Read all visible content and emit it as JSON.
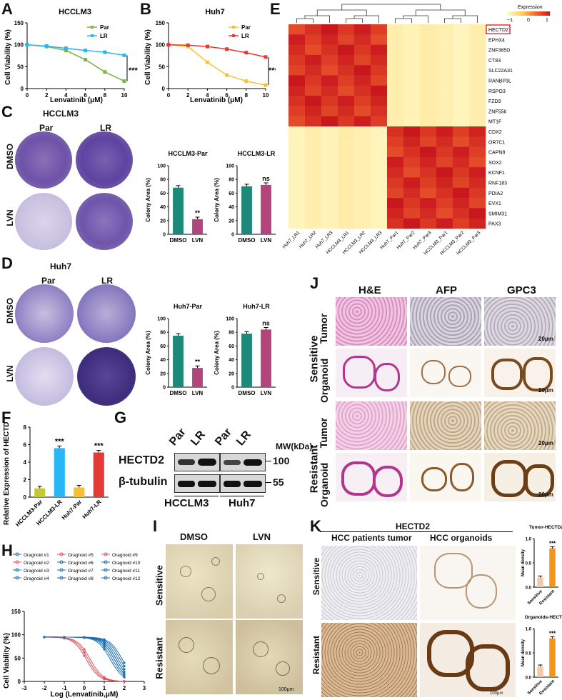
{
  "panels": {
    "A": "A",
    "B": "B",
    "C": "C",
    "D": "D",
    "E": "E",
    "F": "F",
    "G": "G",
    "H": "H",
    "I": "I",
    "J": "J",
    "K": "K"
  },
  "panelA": {
    "title": "HCCLM3",
    "xlabel": "Lenvatinib (μM)",
    "ylabel": "Cell Viability (%)",
    "sig": "***",
    "legend": [
      "Par",
      "LR"
    ],
    "xticks": [
      "0",
      "2",
      "4",
      "6",
      "8",
      "10"
    ],
    "yticks": [
      "0",
      "50",
      "100",
      "150"
    ],
    "x": [
      0,
      2,
      4,
      6,
      8,
      10
    ],
    "series": [
      {
        "name": "Par",
        "values": [
          100,
          96,
          87,
          66,
          38,
          17
        ],
        "color": "#7cb342"
      },
      {
        "name": "LR",
        "values": [
          100,
          97,
          92,
          87,
          83,
          76
        ],
        "color": "#29b6f6"
      }
    ]
  },
  "panelB": {
    "title": "Huh7",
    "xlabel": "Lenvatinib (μM)",
    "ylabel": "Cell Viability (%)",
    "sig": "***",
    "legend": [
      "Par",
      "LR"
    ],
    "xticks": [
      "0",
      "2",
      "4",
      "6",
      "8",
      "10"
    ],
    "yticks": [
      "0",
      "50",
      "100",
      "150"
    ],
    "x": [
      0,
      2,
      4,
      6,
      8,
      10
    ],
    "series": [
      {
        "name": "Par",
        "values": [
          100,
          96,
          60,
          31,
          17,
          8
        ],
        "color": "#fbc02d"
      },
      {
        "name": "LR",
        "values": [
          100,
          99,
          96,
          90,
          82,
          72
        ],
        "color": "#e53935"
      }
    ]
  },
  "panelC": {
    "title": "HCCLM3",
    "cols": [
      "Par",
      "LR"
    ],
    "rows": [
      "DMSO",
      "LVN"
    ],
    "bar1": {
      "title": "HCCLM3-Par",
      "ylabel": "Colony Area (%)",
      "categories": [
        "DMSO",
        "LVN"
      ],
      "values": [
        68,
        22
      ],
      "sig": "**",
      "yticks": [
        "0",
        "20",
        "40",
        "60",
        "80",
        "100"
      ]
    },
    "bar2": {
      "title": "HCCLM3-LR",
      "ylabel": "Colony Area (%)",
      "categories": [
        "DMSO",
        "LVN"
      ],
      "values": [
        70,
        72
      ],
      "sig": "ns",
      "yticks": [
        "0",
        "20",
        "40",
        "60",
        "80",
        "100"
      ]
    }
  },
  "panelD": {
    "title": "Huh7",
    "cols": [
      "Par",
      "LR"
    ],
    "rows": [
      "DMSO",
      "LVN"
    ],
    "bar1": {
      "title": "Huh7-Par",
      "ylabel": "Colony Area (%)",
      "categories": [
        "DMSO",
        "LVN"
      ],
      "values": [
        75,
        28
      ],
      "sig": "**",
      "yticks": [
        "0",
        "20",
        "40",
        "60",
        "80",
        "100"
      ]
    },
    "bar2": {
      "title": "Huh7-LR",
      "ylabel": "Colony Area (%)",
      "categories": [
        "DMSO",
        "LVN"
      ],
      "values": [
        78,
        84
      ],
      "sig": "ns",
      "yticks": [
        "0",
        "20",
        "40",
        "60",
        "80",
        "100"
      ]
    }
  },
  "panelE": {
    "legend_title": "Expression",
    "legend_ticks": [
      "−1",
      "0",
      "1"
    ],
    "genes": [
      "HECTD2",
      "EPHX4",
      "ZNF385D",
      "CT83",
      "SLC22A31",
      "RANBP3L",
      "RSPO3",
      "FZD9",
      "ZNF556",
      "MT1F",
      "CDX2",
      "OR7C1",
      "CAPN8",
      "SOX2",
      "KCNF1",
      "RNF183",
      "PDIA2",
      "EVX1",
      "SMIM31",
      "PAX3"
    ],
    "samples": [
      "Huh7_LR1",
      "Huh7_LR2",
      "Huh7_LR3",
      "HCCLM3_LR1",
      "HCCLM3_LR2",
      "HCCLM3_LR3",
      "Huh7_Par1",
      "Huh7_Par2",
      "Huh7_Par3",
      "HCCLM3_Par1",
      "HCCLM3_Par2",
      "HCCLM3_Par3"
    ]
  },
  "panelF": {
    "ylabel": "Relative Expression of HECTD2",
    "categories": [
      "HCCLM3-Par",
      "HCCLM3-LR",
      "Huh7-Par",
      "Huh7-LR"
    ],
    "values": [
      1.0,
      5.6,
      1.1,
      5.1
    ],
    "colors": [
      "#c0ca33",
      "#29b6f6",
      "#fbc02d",
      "#e53935"
    ],
    "sig": [
      "",
      "***",
      "",
      "***"
    ],
    "yticks": [
      "0",
      "2",
      "4",
      "6",
      "8"
    ]
  },
  "panelG": {
    "lanes": [
      "Par",
      "LR",
      "Par",
      "LR"
    ],
    "mw_label": "MW(kDa)",
    "bands": [
      "HECTD2",
      "β-tubulin"
    ],
    "mw": [
      "100",
      "55"
    ],
    "groups": [
      "HCCLM3",
      "Huh7"
    ]
  },
  "panelH": {
    "xlabel": "Log (Lenvatinib,μM)",
    "ylabel": "Cell Viability (%)",
    "xticks": [
      "-3",
      "-2",
      "-1",
      "0",
      "1",
      "2",
      "3"
    ],
    "yticks": [
      "0",
      "50",
      "100",
      "150"
    ],
    "legend": [
      "Oragnoid #1",
      "Oragnoid #2",
      "Oragnoid #3",
      "Oragnoid #4",
      "Oragnoid #5",
      "Oragnoid #6",
      "Oragnoid #7",
      "Oragnoid #8",
      "Oragnoid #9",
      "Oragnoid #10",
      "Oragnoid #11",
      "Oragnoid #12"
    ],
    "x": [
      -2,
      -1,
      0,
      1,
      2
    ]
  },
  "panelI": {
    "cols": [
      "DMSO",
      "LVN"
    ],
    "rows": [
      "Sensitive",
      "Resistant"
    ],
    "scale": "100μm"
  },
  "panelJ": {
    "cols": [
      "H&E",
      "AFP",
      "GPC3"
    ],
    "groups": [
      "Sensitive",
      "Resistant"
    ],
    "rows": [
      "Tumor",
      "Organoid"
    ],
    "scale": "20μm"
  },
  "panelK": {
    "title": "HECTD2",
    "cols": [
      "HCC patients tumor",
      "HCC organoids"
    ],
    "rows": [
      "Sensitive",
      "Resistant"
    ],
    "scale": "100μm",
    "bar1": {
      "title": "Tumor-HECTD2",
      "ylabel": "Mean density",
      "categories": [
        "Sensitive",
        "Resistant"
      ],
      "values": [
        0.2,
        0.8
      ],
      "sig": "***",
      "yticks": [
        "0.0",
        "0.5",
        "1.0"
      ]
    },
    "bar2": {
      "title": "Organoids-HECTD2",
      "ylabel": "Mean density",
      "categories": [
        "Sensitive",
        "Resistant"
      ],
      "values": [
        0.22,
        0.8
      ],
      "sig": "***",
      "yticks": [
        "0.0",
        "0.5",
        "1.0"
      ]
    }
  }
}
